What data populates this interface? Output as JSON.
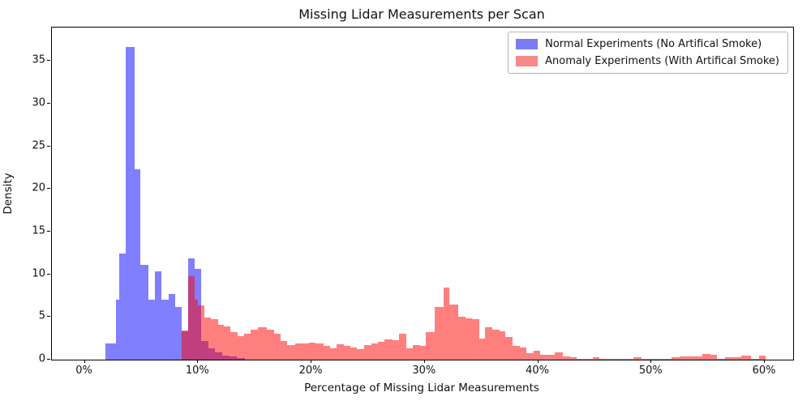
{
  "title": "Missing Lidar Measurements per Scan",
  "axes": {
    "xlabel": "Percentage of Missing Lidar Measurements",
    "ylabel": "Density"
  },
  "legend": {
    "items": [
      {
        "label": "Normal Experiments (No Artifical Smoke)",
        "swatch_color": "#7b7bf3"
      },
      {
        "label": "Anomaly Experiments (With Artifical Smoke)",
        "swatch_color": "#f98888"
      }
    ]
  },
  "colors": {
    "normal_fill": "rgba(0,0,255,0.5)",
    "anomaly_fill": "rgba(255,0,0,0.5)",
    "overlap_seen": "#bf407f",
    "normal_seen": "#8080ff",
    "anomaly_seen": "#ff8080"
  },
  "chart_data": {
    "type": "histogram",
    "note": "Two overlapping density histograms; bars are [x_start_pct, x_end_pct, density]",
    "xlim": [
      -2.9,
      62.5
    ],
    "ylim": [
      0,
      38.9
    ],
    "x_ticks": [
      {
        "value": 0,
        "label": "0%"
      },
      {
        "value": 10,
        "label": "10%"
      },
      {
        "value": 20,
        "label": "20%"
      },
      {
        "value": 30,
        "label": "30%"
      },
      {
        "value": 40,
        "label": "40%"
      },
      {
        "value": 50,
        "label": "50%"
      },
      {
        "value": 60,
        "label": "60%"
      }
    ],
    "y_ticks": [
      {
        "value": 0,
        "label": "0"
      },
      {
        "value": 5,
        "label": "5"
      },
      {
        "value": 10,
        "label": "10"
      },
      {
        "value": 15,
        "label": "15"
      },
      {
        "value": 20,
        "label": "20"
      },
      {
        "value": 25,
        "label": "25"
      },
      {
        "value": 30,
        "label": "30"
      },
      {
        "value": 35,
        "label": "35"
      }
    ],
    "series": [
      {
        "name": "Normal Experiments (No Artifical Smoke)",
        "fill": "rgba(0,0,255,0.5)",
        "bars": [
          [
            1.83,
            2.78,
            1.9
          ],
          [
            2.78,
            3.05,
            7.0
          ],
          [
            3.05,
            3.63,
            12.4
          ],
          [
            3.63,
            4.4,
            36.6
          ],
          [
            4.4,
            4.9,
            22.3
          ],
          [
            4.9,
            5.59,
            11.1
          ],
          [
            5.59,
            6.19,
            7.0
          ],
          [
            6.19,
            6.74,
            10.3
          ],
          [
            6.74,
            7.38,
            7.0
          ],
          [
            7.38,
            7.97,
            7.7
          ],
          [
            7.97,
            8.57,
            6.2
          ],
          [
            8.57,
            9.12,
            3.3
          ],
          [
            9.12,
            9.69,
            11.9
          ],
          [
            9.69,
            10.26,
            10.6
          ],
          [
            10.26,
            10.88,
            2.2
          ],
          [
            10.88,
            11.47,
            1.3
          ],
          [
            11.47,
            12.1,
            0.85
          ],
          [
            12.1,
            12.73,
            0.5
          ],
          [
            12.73,
            13.4,
            0.35
          ],
          [
            13.4,
            14.1,
            0.15
          ]
        ]
      },
      {
        "name": "Anomaly Experiments (With Artifical Smoke)",
        "fill": "rgba(255,0,0,0.5)",
        "bars": [
          [
            8.57,
            9.12,
            3.4
          ],
          [
            9.12,
            9.69,
            9.8
          ],
          [
            9.69,
            9.96,
            7.0
          ],
          [
            9.96,
            10.55,
            6.4
          ],
          [
            10.55,
            11.15,
            4.9
          ],
          [
            11.15,
            11.74,
            4.7
          ],
          [
            11.74,
            12.27,
            4.1
          ],
          [
            12.27,
            12.86,
            3.9
          ],
          [
            12.86,
            13.46,
            3.2
          ],
          [
            13.46,
            14.06,
            2.8
          ],
          [
            14.06,
            14.65,
            3.0
          ],
          [
            14.65,
            15.25,
            3.5
          ],
          [
            15.25,
            16.04,
            3.8
          ],
          [
            16.04,
            16.68,
            3.5
          ],
          [
            16.68,
            17.27,
            3.0
          ],
          [
            17.27,
            17.87,
            2.2
          ],
          [
            17.87,
            18.54,
            1.7
          ],
          [
            18.54,
            19.18,
            1.9
          ],
          [
            19.18,
            19.78,
            1.9
          ],
          [
            19.78,
            20.37,
            2.0
          ],
          [
            20.37,
            21.04,
            1.9
          ],
          [
            21.04,
            21.64,
            1.6
          ],
          [
            21.64,
            22.23,
            1.3
          ],
          [
            22.23,
            22.83,
            1.8
          ],
          [
            22.83,
            23.43,
            1.6
          ],
          [
            23.43,
            24.02,
            1.4
          ],
          [
            24.02,
            24.67,
            1.2
          ],
          [
            24.67,
            25.26,
            1.7
          ],
          [
            25.26,
            25.86,
            1.9
          ],
          [
            25.86,
            26.46,
            2.1
          ],
          [
            26.46,
            27.13,
            2.4
          ],
          [
            27.13,
            27.72,
            2.3
          ],
          [
            27.72,
            28.36,
            3.0
          ],
          [
            28.36,
            28.96,
            1.3
          ],
          [
            28.96,
            29.56,
            1.7
          ],
          [
            29.56,
            30.08,
            1.6
          ],
          [
            30.08,
            30.87,
            3.2
          ],
          [
            30.87,
            31.65,
            6.2
          ],
          [
            31.65,
            32.18,
            8.4
          ],
          [
            32.18,
            32.96,
            6.5
          ],
          [
            32.96,
            33.56,
            5.0
          ],
          [
            33.56,
            34.2,
            4.8
          ],
          [
            34.2,
            34.8,
            4.7
          ],
          [
            34.8,
            35.32,
            2.5
          ],
          [
            35.32,
            35.94,
            3.8
          ],
          [
            35.94,
            36.58,
            3.5
          ],
          [
            36.58,
            37.13,
            3.3
          ],
          [
            37.13,
            37.77,
            2.7
          ],
          [
            37.77,
            38.37,
            1.6
          ],
          [
            38.37,
            38.97,
            1.4
          ],
          [
            38.97,
            39.57,
            0.8
          ],
          [
            39.57,
            40.16,
            1.0
          ],
          [
            40.16,
            40.88,
            0.55
          ],
          [
            40.88,
            41.48,
            0.6
          ],
          [
            41.48,
            42.15,
            0.85
          ],
          [
            42.15,
            42.79,
            0.4
          ],
          [
            42.79,
            43.39,
            0.25
          ],
          [
            43.39,
            44.82,
            0.08
          ],
          [
            44.82,
            45.42,
            0.3
          ],
          [
            45.42,
            48.4,
            0.05
          ],
          [
            48.4,
            49.11,
            0.25
          ],
          [
            49.11,
            51.74,
            0.05
          ],
          [
            51.74,
            52.45,
            0.3
          ],
          [
            52.45,
            53.4,
            0.4
          ],
          [
            53.4,
            54.48,
            0.35
          ],
          [
            54.48,
            55.19,
            0.7
          ],
          [
            55.19,
            55.79,
            0.6
          ],
          [
            55.79,
            56.5,
            0.1
          ],
          [
            56.5,
            57.93,
            0.3
          ],
          [
            57.93,
            58.77,
            0.45
          ],
          [
            58.77,
            59.48,
            0.1
          ],
          [
            59.48,
            60.08,
            0.5
          ]
        ]
      }
    ]
  }
}
